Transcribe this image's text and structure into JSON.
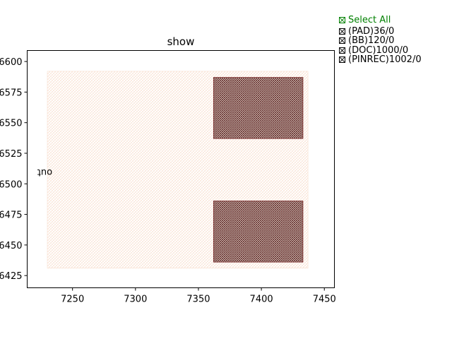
{
  "chart_data": {
    "type": "layout",
    "title": "show",
    "xlim": [
      7214,
      7458
    ],
    "ylim": [
      6415,
      6609
    ],
    "xticks": [
      7250,
      7300,
      7350,
      7400,
      7450
    ],
    "yticks": [
      6425,
      6450,
      6475,
      6500,
      6525,
      6550,
      6575,
      6600
    ],
    "ytick_labels": [
      "6425",
      "6450",
      "6475",
      "6500",
      "6525",
      "6550",
      "6575",
      "6600"
    ],
    "rects": [
      {
        "layer": "outline",
        "x0": 7230,
        "x1": 7437,
        "y0": 6431,
        "y1": 6592,
        "color": "#f7d9c6",
        "pattern": "light"
      },
      {
        "layer": "dense",
        "x0": 7362,
        "x1": 7433,
        "y0": 6537,
        "y1": 6587,
        "color": "#7a2b2b",
        "pattern": "dense"
      },
      {
        "layer": "dense",
        "x0": 7362,
        "x1": 7433,
        "y0": 6436,
        "y1": 6486,
        "color": "#7a2b2b",
        "pattern": "dense"
      }
    ],
    "annotation": {
      "text": "out",
      "x": 7228,
      "y": 6507,
      "rotated": 180
    }
  },
  "layers": {
    "select_all": "Select All",
    "items": [
      "(PAD)36/0",
      "(BB)120/0",
      "(DOC)1000/0",
      "(PINREC)1002/0"
    ]
  },
  "colors": {
    "select_all": "#008000",
    "dense": "#7a2b2b",
    "light": "#f7d9c6"
  }
}
